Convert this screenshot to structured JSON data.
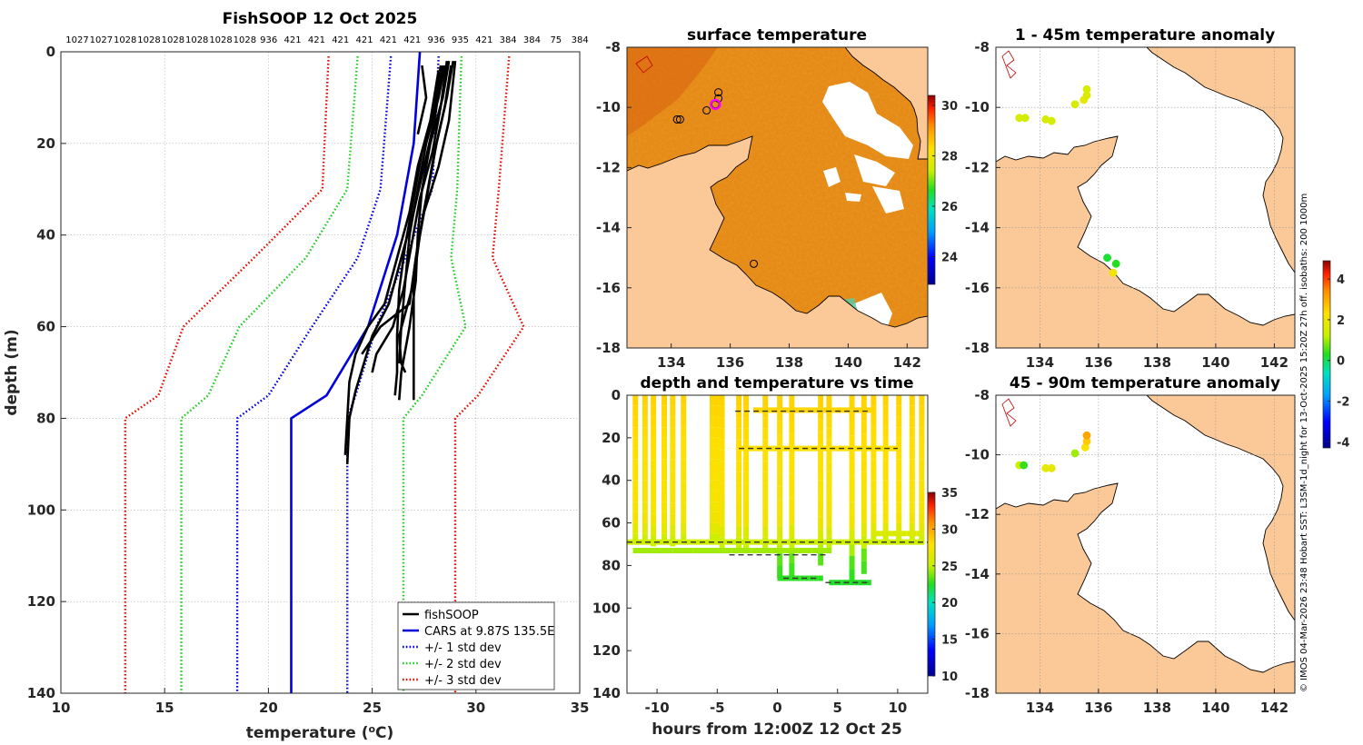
{
  "credit": "© IMOS 04-Mar-2026 23:48 Hobart SST: L3SM-1d_night for 13-Oct-2025 15:20Z 27h off. isobaths: 200  1000m",
  "colors": {
    "observed": "#000000",
    "cars": "#0000dd",
    "std1": "#0000dd",
    "std2": "#22cc22",
    "std3": "#dd1100",
    "land": "#fbc898",
    "sea_blank": "#ffffff",
    "sst_base": "#e58a18"
  },
  "chart_data": [
    {
      "id": "profile",
      "type": "line",
      "title": "FishSOOP 12 Oct 2025",
      "xlabel": "temperature (°C)",
      "xlabel_main": "temperature (",
      "xlabel_sup": "o",
      "xlabel_end": "C)",
      "ylabel": "depth (m)",
      "xlim": [
        10,
        35
      ],
      "ylim": [
        0,
        140
      ],
      "xticks": [
        10,
        15,
        20,
        25,
        30,
        35
      ],
      "yticks": [
        0,
        20,
        40,
        60,
        80,
        100,
        120,
        140
      ],
      "grid": true,
      "top_labels": [
        "1027",
        "1027",
        "1028",
        "1028",
        "1028",
        "1028",
        "1028",
        "1028",
        "936",
        "421",
        "421",
        "421",
        "421",
        "421",
        "421",
        "936",
        "935",
        "421",
        "384",
        "384",
        "75",
        "384"
      ],
      "legend": {
        "placement": "bottom-right",
        "entries": [
          {
            "label": "fishSOOP",
            "style": "solid",
            "color": "#000000"
          },
          {
            "label": "CARS at 9.87S 135.5E",
            "style": "solid",
            "color": "#0000dd"
          },
          {
            "label": "+/- 1 std dev",
            "style": "dotted",
            "color": "#0000dd"
          },
          {
            "label": "+/- 2 std dev",
            "style": "dotted",
            "color": "#22cc22"
          },
          {
            "label": "+/- 3 std dev",
            "style": "dotted",
            "color": "#dd1100"
          }
        ]
      },
      "cars": {
        "depth": [
          0,
          20,
          40,
          60,
          75,
          80,
          140
        ],
        "temp": [
          27.3,
          27.0,
          26.2,
          24.8,
          22.8,
          21.1,
          21.1
        ]
      },
      "std_lines": [
        {
          "name": "-3 std",
          "color": "#dd1100",
          "depth": [
            1,
            30,
            45,
            60,
            75,
            80,
            140
          ],
          "temp": [
            22.9,
            22.6,
            19.3,
            15.9,
            14.7,
            13.1,
            13.1
          ]
        },
        {
          "name": "-2 std",
          "color": "#22cc22",
          "depth": [
            1,
            30,
            45,
            60,
            75,
            80,
            140
          ],
          "temp": [
            24.3,
            23.8,
            21.8,
            18.6,
            17.1,
            15.8,
            15.8
          ]
        },
        {
          "name": "-1 std",
          "color": "#0000dd",
          "depth": [
            1,
            30,
            45,
            60,
            75,
            80,
            140
          ],
          "temp": [
            25.9,
            25.4,
            24.3,
            22.1,
            20.0,
            18.5,
            18.5
          ]
        },
        {
          "name": "+1 std",
          "color": "#0000dd",
          "depth": [
            1,
            30,
            45,
            60,
            75,
            80,
            140
          ],
          "temp": [
            28.2,
            27.9,
            26.6,
            25.2,
            24.2,
            23.8,
            23.8
          ]
        },
        {
          "name": "+2 std",
          "color": "#22cc22",
          "depth": [
            1,
            30,
            45,
            60,
            75,
            80,
            140
          ],
          "temp": [
            29.3,
            29.1,
            28.8,
            29.5,
            27.4,
            26.5,
            26.5
          ]
        },
        {
          "name": "+3 std",
          "color": "#dd1100",
          "depth": [
            1,
            30,
            45,
            60,
            75,
            80,
            140
          ],
          "temp": [
            31.6,
            31.1,
            30.8,
            32.3,
            30.1,
            29.0,
            29.0
          ]
        }
      ],
      "profiles": [
        {
          "depth": [
            2,
            10,
            20,
            30,
            40,
            50,
            60,
            70,
            76
          ],
          "temp": [
            28.7,
            28.4,
            27.8,
            27.4,
            27.2,
            27.1,
            26.8,
            26.4,
            26.3
          ]
        },
        {
          "depth": [
            2,
            10,
            20,
            30,
            40,
            50,
            60,
            70,
            76
          ],
          "temp": [
            28.9,
            28.6,
            28.1,
            27.7,
            27.3,
            27.0,
            27.0,
            27.0,
            27.0
          ]
        },
        {
          "depth": [
            3,
            10,
            20,
            30,
            40,
            50,
            60,
            68
          ],
          "temp": [
            28.5,
            28.2,
            27.6,
            27.2,
            26.8,
            26.6,
            26.4,
            26.3
          ]
        },
        {
          "depth": [
            3,
            12,
            22,
            32,
            42,
            52,
            62,
            70,
            75
          ],
          "temp": [
            28.3,
            28.0,
            27.4,
            27.0,
            26.6,
            26.3,
            26.2,
            26.2,
            26.1
          ]
        },
        {
          "depth": [
            2,
            15,
            25,
            35,
            45,
            55,
            60,
            66
          ],
          "temp": [
            29.0,
            28.7,
            28.2,
            27.5,
            27.1,
            26.8,
            25.4,
            24.5
          ]
        },
        {
          "depth": [
            3,
            15,
            25,
            35,
            45,
            55,
            62,
            68,
            74,
            80,
            90
          ],
          "temp": [
            28.4,
            28.0,
            27.5,
            27.0,
            26.4,
            25.8,
            25.0,
            24.6,
            24.2,
            23.9,
            23.8
          ]
        },
        {
          "depth": [
            4,
            15,
            25,
            35,
            45,
            55,
            60,
            66,
            72,
            80,
            88
          ],
          "temp": [
            28.2,
            27.8,
            27.2,
            26.8,
            26.2,
            25.6,
            24.8,
            24.2,
            23.9,
            23.8,
            23.7
          ]
        },
        {
          "depth": [
            2,
            12,
            22,
            32,
            42,
            52,
            60,
            66,
            70
          ],
          "temp": [
            28.6,
            28.3,
            27.9,
            27.3,
            26.9,
            26.5,
            26.0,
            25.2,
            25.0
          ]
        },
        {
          "depth": [
            3,
            12,
            22,
            32,
            42,
            52,
            62,
            68,
            70
          ],
          "temp": [
            28.8,
            28.5,
            28.0,
            27.6,
            27.2,
            26.9,
            26.3,
            26.4,
            26.6
          ]
        },
        {
          "depth": [
            3,
            10,
            18
          ],
          "temp": [
            27.4,
            27.6,
            27.2
          ]
        }
      ]
    },
    {
      "id": "sst_map",
      "type": "heatmap",
      "title": "surface temperature",
      "xlim": [
        132.5,
        142.7
      ],
      "ylim": [
        -18,
        -8
      ],
      "xticks": [
        134,
        136,
        138,
        140,
        142
      ],
      "yticks": [
        -8,
        -10,
        -12,
        -14,
        -16,
        -18
      ],
      "colorbar": {
        "ticks": [
          24,
          26,
          28,
          30
        ],
        "range": [
          22.9,
          30.4
        ]
      },
      "markers": [
        {
          "lon": 134.2,
          "lat": -10.4
        },
        {
          "lon": 134.3,
          "lat": -10.4
        },
        {
          "lon": 135.2,
          "lat": -10.1
        },
        {
          "lon": 135.6,
          "lat": -9.7
        },
        {
          "lon": 135.6,
          "lat": -9.5
        },
        {
          "lon": 135.5,
          "lat": -9.9
        },
        {
          "lon": 136.8,
          "lat": -15.2
        }
      ],
      "highlight": {
        "lon": 135.5,
        "lat": -9.9
      }
    },
    {
      "id": "depth_time",
      "type": "scatter",
      "title": "depth and temperature vs time",
      "xlabel": "hours from 12:00Z 12 Oct 25",
      "xlim": [
        -12.5,
        12.5
      ],
      "ylim": [
        0,
        140
      ],
      "xticks": [
        -10,
        -5,
        0,
        5,
        10
      ],
      "yticks": [
        0,
        20,
        40,
        60,
        80,
        100,
        120,
        140
      ],
      "colorbar": {
        "ticks": [
          10,
          15,
          20,
          25,
          30,
          35
        ],
        "range": [
          10,
          35
        ]
      },
      "casts": [
        {
          "t": -11.8,
          "bottom": 70
        },
        {
          "t": -11.0,
          "bottom": 70
        },
        {
          "t": -10.3,
          "bottom": 71
        },
        {
          "t": -9.4,
          "bottom": 70
        },
        {
          "t": -8.7,
          "bottom": 71
        },
        {
          "t": -7.8,
          "bottom": 70
        },
        {
          "t": -5.4,
          "bottom": 70
        },
        {
          "t": -5.0,
          "bottom": 70
        },
        {
          "t": -4.6,
          "bottom": 72
        },
        {
          "t": -3.2,
          "bottom": 72
        },
        {
          "t": -2.6,
          "bottom": 72
        },
        {
          "t": -1.0,
          "bottom": 72
        },
        {
          "t": 0.2,
          "bottom": 86
        },
        {
          "t": 1.2,
          "bottom": 85
        },
        {
          "t": 3.6,
          "bottom": 80
        },
        {
          "t": 4.3,
          "bottom": 72
        },
        {
          "t": 6.2,
          "bottom": 88
        },
        {
          "t": 7.2,
          "bottom": 84
        },
        {
          "t": 8.0,
          "bottom": 70
        },
        {
          "t": 9.0,
          "bottom": 70
        },
        {
          "t": 10.1,
          "bottom": 70
        },
        {
          "t": 11.2,
          "bottom": 70
        },
        {
          "t": 12.0,
          "bottom": 70
        }
      ],
      "tows": [
        {
          "t0": -2.0,
          "t1": 7.8,
          "depth": 7
        },
        {
          "t0": -3.2,
          "t1": 10.2,
          "depth": 25
        },
        {
          "t0": 7.8,
          "t1": 12.0,
          "depth": 65
        },
        {
          "t0": -12.5,
          "t1": 12.2,
          "depth": 69
        },
        {
          "t0": -12.0,
          "t1": 4.5,
          "depth": 73
        },
        {
          "t0": 0.0,
          "t1": 3.8,
          "depth": 86
        },
        {
          "t0": 4.3,
          "t1": 7.8,
          "depth": 88
        }
      ],
      "dashed_refs": [
        {
          "t0": -3.5,
          "t1": 7.5,
          "depth": 7.5
        },
        {
          "t0": -3.2,
          "t1": 10.0,
          "depth": 25
        },
        {
          "t0": -12.5,
          "t1": 12.5,
          "depth": 69
        },
        {
          "t0": -4.0,
          "t1": 4.0,
          "depth": 75
        },
        {
          "t0": 0.5,
          "t1": 3.5,
          "depth": 86
        },
        {
          "t0": 4.0,
          "t1": 7.5,
          "depth": 88
        }
      ]
    },
    {
      "id": "anom_1_45",
      "type": "scatter",
      "title": "1 - 45m temperature anomaly",
      "xlim": [
        132.5,
        142.7
      ],
      "ylim": [
        -18,
        -8
      ],
      "xticks": [
        134,
        136,
        138,
        140,
        142
      ],
      "yticks": [
        -8,
        -10,
        -12,
        -14,
        -16,
        -18
      ],
      "points": [
        {
          "lon": 133.3,
          "lat": -10.35,
          "anom": 1.5
        },
        {
          "lon": 133.5,
          "lat": -10.35,
          "anom": 1.4
        },
        {
          "lon": 134.2,
          "lat": -10.4,
          "anom": 1.5
        },
        {
          "lon": 134.4,
          "lat": -10.45,
          "anom": 1.5
        },
        {
          "lon": 135.2,
          "lat": -9.9,
          "anom": 1.5
        },
        {
          "lon": 135.5,
          "lat": -9.75,
          "anom": 1.8
        },
        {
          "lon": 135.6,
          "lat": -9.6,
          "anom": 1.6
        },
        {
          "lon": 135.6,
          "lat": -9.4,
          "anom": 1.5
        },
        {
          "lon": 136.3,
          "lat": -15.0,
          "anom": 0.2
        },
        {
          "lon": 136.6,
          "lat": -15.2,
          "anom": 0.3
        },
        {
          "lon": 136.5,
          "lat": -15.5,
          "anom": 2.0
        }
      ]
    },
    {
      "id": "anom_45_90",
      "type": "scatter",
      "title": "45 - 90m temperature anomaly",
      "xlim": [
        132.5,
        142.7
      ],
      "ylim": [
        -18,
        -8
      ],
      "xticks": [
        134,
        136,
        138,
        140,
        142
      ],
      "yticks": [
        -8,
        -10,
        -12,
        -14,
        -16,
        -18
      ],
      "points": [
        {
          "lon": 133.3,
          "lat": -10.35,
          "anom": 1.3
        },
        {
          "lon": 133.45,
          "lat": -10.35,
          "anom": 0.4
        },
        {
          "lon": 134.2,
          "lat": -10.45,
          "anom": 1.8
        },
        {
          "lon": 134.4,
          "lat": -10.45,
          "anom": 1.8
        },
        {
          "lon": 135.2,
          "lat": -9.95,
          "anom": 1.0
        },
        {
          "lon": 135.55,
          "lat": -9.75,
          "anom": 2.2
        },
        {
          "lon": 135.6,
          "lat": -9.55,
          "anom": 2.6
        },
        {
          "lon": 135.6,
          "lat": -9.35,
          "anom": 3.1
        }
      ],
      "colorbar": {
        "ticks": [
          -4,
          -2,
          0,
          2,
          4
        ],
        "range": [
          -4.3,
          4.9
        ]
      }
    }
  ]
}
